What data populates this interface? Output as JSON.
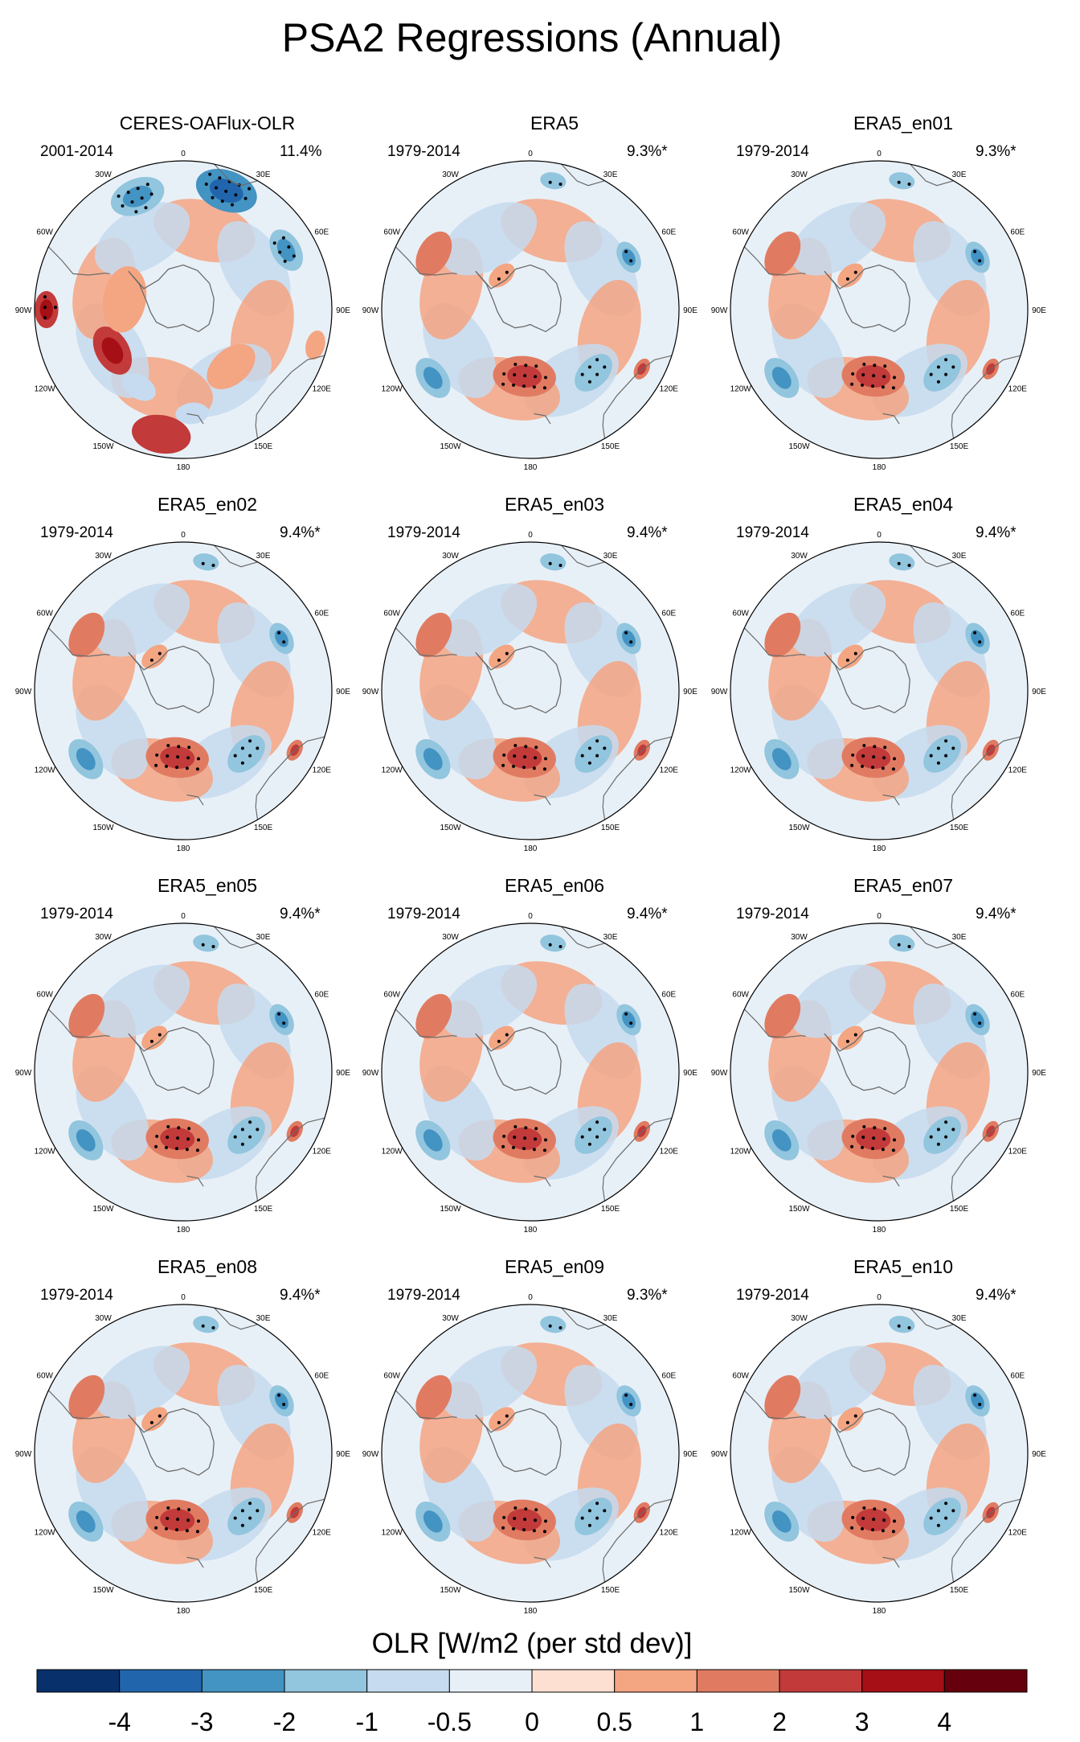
{
  "title": "PSA2 Regressions (Annual)",
  "chart_data": {
    "type": "heatmap",
    "projection": "south-polar-stereographic",
    "variable": "OLR",
    "colorbar": {
      "label": "OLR [W/m2 (per std dev)]",
      "levels": [
        "-4",
        "-3",
        "-2",
        "-1",
        "-0.5",
        "0",
        "0.5",
        "1",
        "2",
        "3",
        "4"
      ],
      "colors": [
        "#08306b",
        "#2166ac",
        "#4393c3",
        "#92c5de",
        "#c6dbef",
        "#e8f0f7",
        "#fde0d2",
        "#f4a582",
        "#e07b62",
        "#c23a3a",
        "#a50f15",
        "#67000d"
      ]
    },
    "longitude_labels": [
      "0",
      "30E",
      "60E",
      "90E",
      "120E",
      "150E",
      "180",
      "150W",
      "120W",
      "90W",
      "60W",
      "30W"
    ],
    "panels": [
      {
        "title": "CERES-OAFlux-OLR",
        "period": "2001-2014",
        "variance": "11.4%",
        "anomalies": [
          {
            "lon": 20,
            "r": 0.85,
            "value": -2.4,
            "size": 0.17,
            "stipple": true
          },
          {
            "lon": -22,
            "r": 0.82,
            "value": -1.6,
            "size": 0.15,
            "stipple": true
          },
          {
            "lon": 60,
            "r": 0.8,
            "value": -2.0,
            "size": 0.12,
            "stipple": true
          },
          {
            "lon": -90,
            "r": 0.92,
            "value": 2.2,
            "size": 0.1,
            "stipple": true
          },
          {
            "lon": -120,
            "r": 0.55,
            "value": 2.3,
            "size": 0.14,
            "stipple": false
          },
          {
            "lon": -170,
            "r": 0.85,
            "value": 2.0,
            "size": 0.16,
            "stipple": false
          },
          {
            "lon": 105,
            "r": 0.92,
            "value": 0.9,
            "size": 0.08,
            "stipple": false
          },
          {
            "lon": -80,
            "r": 0.4,
            "value": 0.7,
            "size": 0.18,
            "stipple": false
          },
          {
            "lon": 140,
            "r": 0.5,
            "value": 0.6,
            "size": 0.15,
            "stipple": false
          },
          {
            "lon": -150,
            "r": 0.6,
            "value": -0.6,
            "size": 0.1,
            "stipple": false
          },
          {
            "lon": 175,
            "r": 0.7,
            "value": -0.6,
            "size": 0.09,
            "stipple": false
          }
        ]
      },
      {
        "title": "ERA5",
        "period": "1979-2014",
        "variance": "9.3%*",
        "anomalies": [
          {
            "lon": -175,
            "r": 0.45,
            "value": 1.7,
            "size": 0.17,
            "stipple": true
          },
          {
            "lon": 135,
            "r": 0.6,
            "value": -1.2,
            "size": 0.12,
            "stipple": true
          },
          {
            "lon": 62,
            "r": 0.75,
            "value": -1.3,
            "size": 0.09,
            "stipple": true
          },
          {
            "lon": 10,
            "r": 0.88,
            "value": -1.1,
            "size": 0.07,
            "stipple": true
          },
          {
            "lon": -125,
            "r": 0.8,
            "value": -1.6,
            "size": 0.12,
            "stipple": false
          },
          {
            "lon": -60,
            "r": 0.75,
            "value": 1.0,
            "size": 0.13,
            "stipple": false
          },
          {
            "lon": 118,
            "r": 0.85,
            "value": 1.8,
            "size": 0.06,
            "stipple": false
          },
          {
            "lon": -40,
            "r": 0.3,
            "value": 0.7,
            "size": 0.08,
            "stipple": true
          }
        ]
      },
      {
        "title": "ERA5_en01",
        "period": "1979-2014",
        "variance": "9.3%*",
        "anomalies": [
          {
            "lon": -175,
            "r": 0.45,
            "value": 1.7,
            "size": 0.17,
            "stipple": true
          },
          {
            "lon": 135,
            "r": 0.6,
            "value": -1.2,
            "size": 0.12,
            "stipple": true
          },
          {
            "lon": 62,
            "r": 0.75,
            "value": -1.3,
            "size": 0.09,
            "stipple": true
          },
          {
            "lon": 10,
            "r": 0.88,
            "value": -1.1,
            "size": 0.07,
            "stipple": true
          },
          {
            "lon": -125,
            "r": 0.8,
            "value": -1.6,
            "size": 0.12,
            "stipple": false
          },
          {
            "lon": -60,
            "r": 0.75,
            "value": 1.0,
            "size": 0.13,
            "stipple": false
          },
          {
            "lon": 118,
            "r": 0.85,
            "value": 1.8,
            "size": 0.06,
            "stipple": false
          },
          {
            "lon": -40,
            "r": 0.3,
            "value": 0.7,
            "size": 0.08,
            "stipple": true
          }
        ]
      },
      {
        "title": "ERA5_en02",
        "period": "1979-2014",
        "variance": "9.4%*",
        "anomalies": [
          {
            "lon": -175,
            "r": 0.45,
            "value": 1.7,
            "size": 0.17,
            "stipple": true
          },
          {
            "lon": 135,
            "r": 0.6,
            "value": -1.2,
            "size": 0.12,
            "stipple": true
          },
          {
            "lon": 62,
            "r": 0.75,
            "value": -1.3,
            "size": 0.09,
            "stipple": true
          },
          {
            "lon": 10,
            "r": 0.88,
            "value": -1.1,
            "size": 0.07,
            "stipple": true
          },
          {
            "lon": -125,
            "r": 0.8,
            "value": -1.6,
            "size": 0.12,
            "stipple": false
          },
          {
            "lon": -60,
            "r": 0.75,
            "value": 1.0,
            "size": 0.13,
            "stipple": false
          },
          {
            "lon": 118,
            "r": 0.85,
            "value": 1.8,
            "size": 0.06,
            "stipple": false
          },
          {
            "lon": -40,
            "r": 0.3,
            "value": 0.7,
            "size": 0.08,
            "stipple": true
          }
        ]
      },
      {
        "title": "ERA5_en03",
        "period": "1979-2014",
        "variance": "9.4%*",
        "anomalies": [
          {
            "lon": -175,
            "r": 0.45,
            "value": 1.7,
            "size": 0.17,
            "stipple": true
          },
          {
            "lon": 135,
            "r": 0.6,
            "value": -1.2,
            "size": 0.12,
            "stipple": true
          },
          {
            "lon": 62,
            "r": 0.75,
            "value": -1.3,
            "size": 0.09,
            "stipple": true
          },
          {
            "lon": 10,
            "r": 0.88,
            "value": -1.1,
            "size": 0.07,
            "stipple": true
          },
          {
            "lon": -125,
            "r": 0.8,
            "value": -1.6,
            "size": 0.12,
            "stipple": false
          },
          {
            "lon": -60,
            "r": 0.75,
            "value": 1.0,
            "size": 0.13,
            "stipple": false
          },
          {
            "lon": 118,
            "r": 0.85,
            "value": 1.8,
            "size": 0.06,
            "stipple": false
          },
          {
            "lon": -40,
            "r": 0.3,
            "value": 0.7,
            "size": 0.08,
            "stipple": true
          }
        ]
      },
      {
        "title": "ERA5_en04",
        "period": "1979-2014",
        "variance": "9.4%*",
        "anomalies": [
          {
            "lon": -175,
            "r": 0.45,
            "value": 1.7,
            "size": 0.17,
            "stipple": true
          },
          {
            "lon": 135,
            "r": 0.6,
            "value": -1.2,
            "size": 0.12,
            "stipple": true
          },
          {
            "lon": 62,
            "r": 0.75,
            "value": -1.3,
            "size": 0.09,
            "stipple": true
          },
          {
            "lon": 10,
            "r": 0.88,
            "value": -1.1,
            "size": 0.07,
            "stipple": true
          },
          {
            "lon": -125,
            "r": 0.8,
            "value": -1.6,
            "size": 0.12,
            "stipple": false
          },
          {
            "lon": -60,
            "r": 0.75,
            "value": 1.0,
            "size": 0.13,
            "stipple": false
          },
          {
            "lon": 118,
            "r": 0.85,
            "value": 1.8,
            "size": 0.06,
            "stipple": false
          },
          {
            "lon": -40,
            "r": 0.3,
            "value": 0.7,
            "size": 0.08,
            "stipple": true
          }
        ]
      },
      {
        "title": "ERA5_en05",
        "period": "1979-2014",
        "variance": "9.4%*",
        "anomalies": [
          {
            "lon": -175,
            "r": 0.45,
            "value": 1.7,
            "size": 0.17,
            "stipple": true
          },
          {
            "lon": 135,
            "r": 0.6,
            "value": -1.2,
            "size": 0.12,
            "stipple": true
          },
          {
            "lon": 62,
            "r": 0.75,
            "value": -1.3,
            "size": 0.09,
            "stipple": true
          },
          {
            "lon": 10,
            "r": 0.88,
            "value": -1.1,
            "size": 0.07,
            "stipple": true
          },
          {
            "lon": -125,
            "r": 0.8,
            "value": -1.6,
            "size": 0.12,
            "stipple": false
          },
          {
            "lon": -60,
            "r": 0.75,
            "value": 1.0,
            "size": 0.13,
            "stipple": false
          },
          {
            "lon": 118,
            "r": 0.85,
            "value": 1.8,
            "size": 0.06,
            "stipple": false
          },
          {
            "lon": -40,
            "r": 0.3,
            "value": 0.7,
            "size": 0.08,
            "stipple": true
          }
        ]
      },
      {
        "title": "ERA5_en06",
        "period": "1979-2014",
        "variance": "9.4%*",
        "anomalies": [
          {
            "lon": -175,
            "r": 0.45,
            "value": 1.7,
            "size": 0.17,
            "stipple": true
          },
          {
            "lon": 135,
            "r": 0.6,
            "value": -1.2,
            "size": 0.12,
            "stipple": true
          },
          {
            "lon": 62,
            "r": 0.75,
            "value": -1.3,
            "size": 0.09,
            "stipple": true
          },
          {
            "lon": 10,
            "r": 0.88,
            "value": -1.1,
            "size": 0.07,
            "stipple": true
          },
          {
            "lon": -125,
            "r": 0.8,
            "value": -1.6,
            "size": 0.12,
            "stipple": false
          },
          {
            "lon": -60,
            "r": 0.75,
            "value": 1.0,
            "size": 0.13,
            "stipple": false
          },
          {
            "lon": 118,
            "r": 0.85,
            "value": 1.8,
            "size": 0.06,
            "stipple": false
          },
          {
            "lon": -40,
            "r": 0.3,
            "value": 0.7,
            "size": 0.08,
            "stipple": true
          }
        ]
      },
      {
        "title": "ERA5_en07",
        "period": "1979-2014",
        "variance": "9.4%*",
        "anomalies": [
          {
            "lon": -175,
            "r": 0.45,
            "value": 1.7,
            "size": 0.17,
            "stipple": true
          },
          {
            "lon": 135,
            "r": 0.6,
            "value": -1.2,
            "size": 0.12,
            "stipple": true
          },
          {
            "lon": 62,
            "r": 0.75,
            "value": -1.3,
            "size": 0.09,
            "stipple": true
          },
          {
            "lon": 10,
            "r": 0.88,
            "value": -1.1,
            "size": 0.07,
            "stipple": true
          },
          {
            "lon": -125,
            "r": 0.8,
            "value": -1.6,
            "size": 0.12,
            "stipple": false
          },
          {
            "lon": -60,
            "r": 0.75,
            "value": 1.0,
            "size": 0.13,
            "stipple": false
          },
          {
            "lon": 118,
            "r": 0.85,
            "value": 1.8,
            "size": 0.06,
            "stipple": false
          },
          {
            "lon": -40,
            "r": 0.3,
            "value": 0.7,
            "size": 0.08,
            "stipple": true
          }
        ]
      },
      {
        "title": "ERA5_en08",
        "period": "1979-2014",
        "variance": "9.4%*",
        "anomalies": [
          {
            "lon": -175,
            "r": 0.45,
            "value": 1.7,
            "size": 0.17,
            "stipple": true
          },
          {
            "lon": 135,
            "r": 0.6,
            "value": -1.2,
            "size": 0.12,
            "stipple": true
          },
          {
            "lon": 62,
            "r": 0.75,
            "value": -1.3,
            "size": 0.09,
            "stipple": true
          },
          {
            "lon": 10,
            "r": 0.88,
            "value": -1.1,
            "size": 0.07,
            "stipple": true
          },
          {
            "lon": -125,
            "r": 0.8,
            "value": -1.6,
            "size": 0.12,
            "stipple": false
          },
          {
            "lon": -60,
            "r": 0.75,
            "value": 1.0,
            "size": 0.13,
            "stipple": false
          },
          {
            "lon": 118,
            "r": 0.85,
            "value": 1.8,
            "size": 0.06,
            "stipple": false
          },
          {
            "lon": -40,
            "r": 0.3,
            "value": 0.7,
            "size": 0.08,
            "stipple": true
          }
        ]
      },
      {
        "title": "ERA5_en09",
        "period": "1979-2014",
        "variance": "9.3%*",
        "anomalies": [
          {
            "lon": -175,
            "r": 0.45,
            "value": 1.7,
            "size": 0.17,
            "stipple": true
          },
          {
            "lon": 135,
            "r": 0.6,
            "value": -1.2,
            "size": 0.12,
            "stipple": true
          },
          {
            "lon": 62,
            "r": 0.75,
            "value": -1.3,
            "size": 0.09,
            "stipple": true
          },
          {
            "lon": 10,
            "r": 0.88,
            "value": -1.1,
            "size": 0.07,
            "stipple": true
          },
          {
            "lon": -125,
            "r": 0.8,
            "value": -1.6,
            "size": 0.12,
            "stipple": false
          },
          {
            "lon": -60,
            "r": 0.75,
            "value": 1.0,
            "size": 0.13,
            "stipple": false
          },
          {
            "lon": 118,
            "r": 0.85,
            "value": 1.8,
            "size": 0.06,
            "stipple": false
          },
          {
            "lon": -40,
            "r": 0.3,
            "value": 0.7,
            "size": 0.08,
            "stipple": true
          }
        ]
      },
      {
        "title": "ERA5_en10",
        "period": "1979-2014",
        "variance": "9.4%*",
        "anomalies": [
          {
            "lon": -175,
            "r": 0.45,
            "value": 1.7,
            "size": 0.17,
            "stipple": true
          },
          {
            "lon": 135,
            "r": 0.6,
            "value": -1.2,
            "size": 0.12,
            "stipple": true
          },
          {
            "lon": 62,
            "r": 0.75,
            "value": -1.3,
            "size": 0.09,
            "stipple": true
          },
          {
            "lon": 10,
            "r": 0.88,
            "value": -1.1,
            "size": 0.07,
            "stipple": true
          },
          {
            "lon": -125,
            "r": 0.8,
            "value": -1.6,
            "size": 0.12,
            "stipple": false
          },
          {
            "lon": -60,
            "r": 0.75,
            "value": 1.0,
            "size": 0.13,
            "stipple": false
          },
          {
            "lon": 118,
            "r": 0.85,
            "value": 1.8,
            "size": 0.06,
            "stipple": false
          },
          {
            "lon": -40,
            "r": 0.3,
            "value": 0.7,
            "size": 0.08,
            "stipple": true
          }
        ]
      }
    ]
  }
}
